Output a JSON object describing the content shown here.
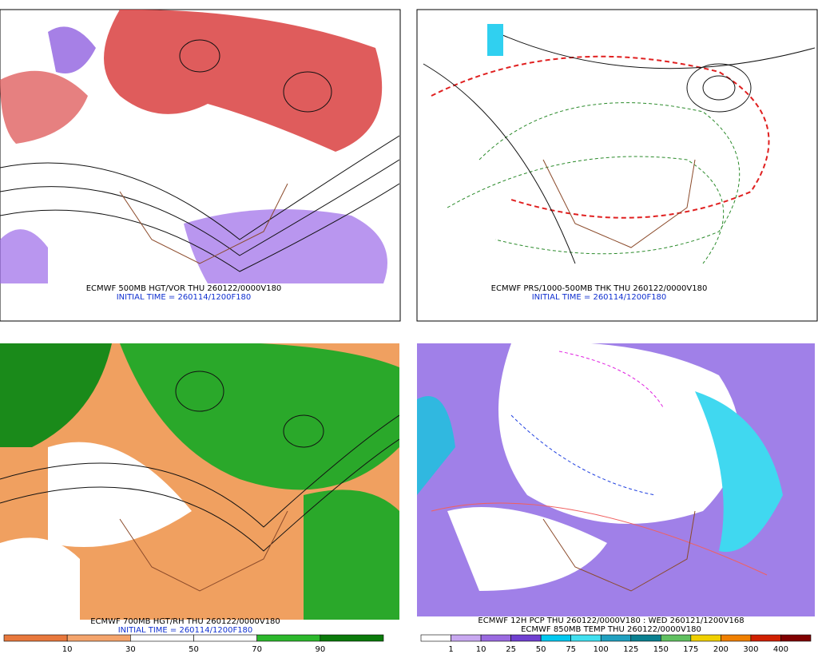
{
  "panels": [
    {
      "caption": "ECMWF 500MB HGT/VOR THU 260122/0000V180",
      "initial": "INITIAL TIME = 260114/1200F180"
    },
    {
      "caption": "ECMWF PRS/1000-500MB THK THU 260122/0000V180",
      "initial": "INITIAL TIME = 260114/1200F180"
    },
    {
      "caption": "ECMWF 700MB HGT/RH THU 260122/0000V180",
      "initial": "INITIAL TIME = 260114/1200F180",
      "colorbar": {
        "labels": [
          "10",
          "30",
          "50",
          "70",
          "90"
        ],
        "colors": [
          "#e8783c",
          "#f4a46c",
          "#ffffff",
          "#ffffff",
          "#2cb82c",
          "#0a7a0a"
        ]
      }
    },
    {
      "caption": "ECMWF 12H PCP THU 260122/0000V180 : WED 260121/1200V168",
      "initial": "ECMWF 850MB TEMP THU 260122/0000V180",
      "colorbar": {
        "labels": [
          "1",
          "10",
          "25",
          "50",
          "75",
          "100",
          "125",
          "150",
          "175",
          "200",
          "300",
          "400"
        ],
        "colors": [
          "#ffffff",
          "#c8a8f0",
          "#9a6ae0",
          "#7040d0",
          "#00c8f0",
          "#40e0f0",
          "#20a0c0",
          "#0a8090",
          "#60c060",
          "#f0d000",
          "#f08000",
          "#d02000",
          "#800000"
        ]
      }
    }
  ]
}
